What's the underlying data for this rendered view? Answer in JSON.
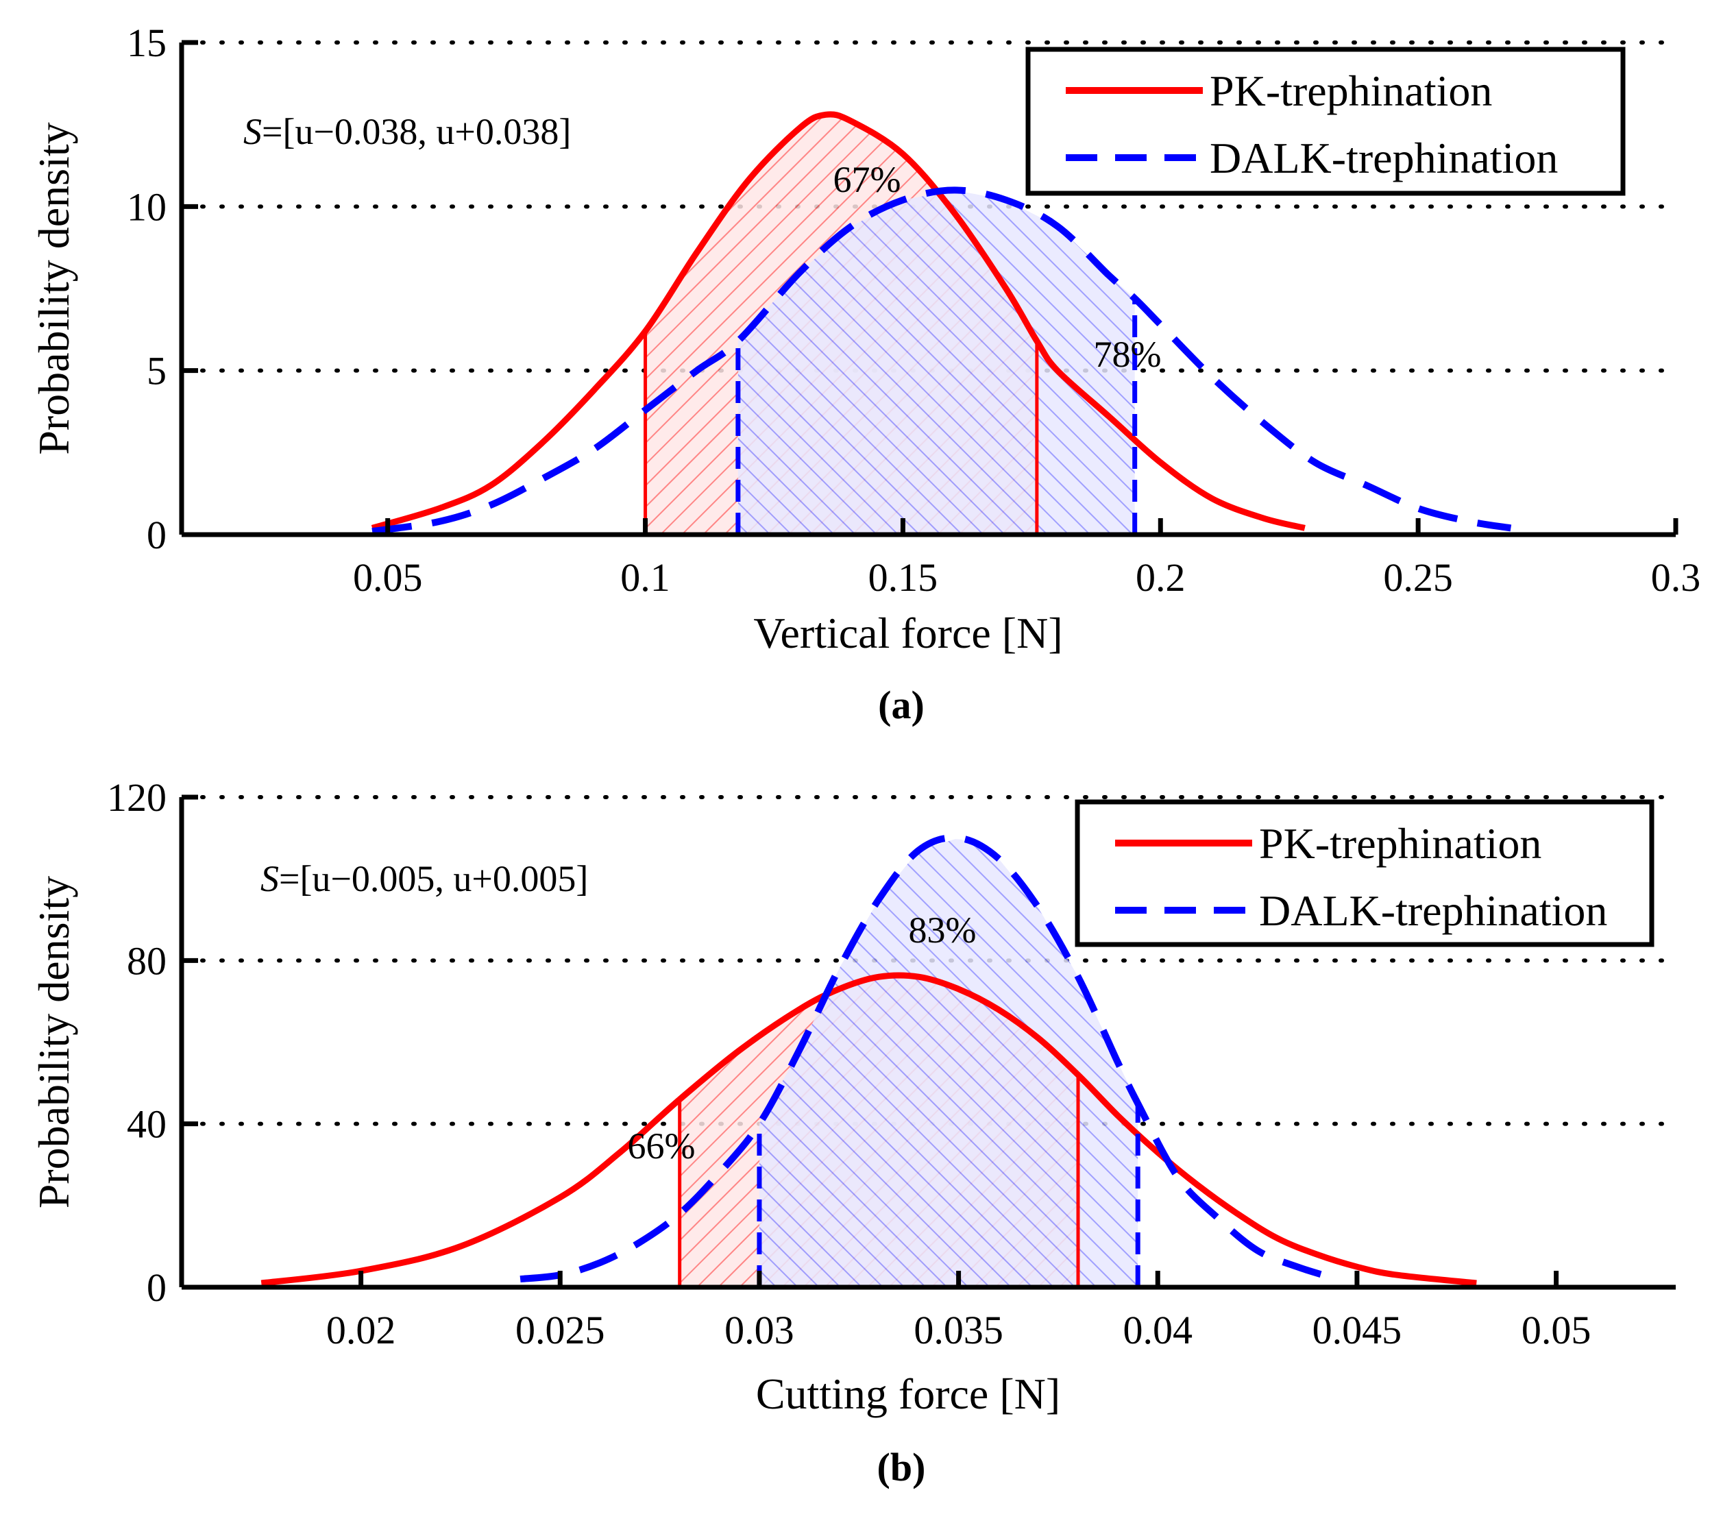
{
  "chart_data": [
    {
      "type": "line",
      "panel_label": "(a)",
      "xlabel": "Vertical force [N]",
      "ylabel": "Probability density",
      "xlim": [
        0.01,
        0.3
      ],
      "ylim": [
        0,
        15
      ],
      "xticks": [
        0.05,
        0.1,
        0.15,
        0.2,
        0.25,
        0.3
      ],
      "xtick_labels": [
        "0.05",
        "0.1",
        "0.15",
        "0.2",
        "0.25",
        "0.3"
      ],
      "yticks": [
        0,
        5,
        10,
        15
      ],
      "ytick_labels": [
        "0",
        "5",
        "10",
        "15"
      ],
      "grid": "horizontal dotted",
      "legend_position": "top-right",
      "annotation": {
        "var": "S",
        "text": "=[u−0.038, u+0.038]"
      },
      "series": [
        {
          "name": "PK-trephination",
          "color": "#ff0000",
          "style": "solid",
          "x": [
            0.047,
            0.06,
            0.07,
            0.08,
            0.09,
            0.1,
            0.11,
            0.12,
            0.13,
            0.135,
            0.14,
            0.15,
            0.16,
            0.17,
            0.176,
            0.18,
            0.19,
            0.2,
            0.21,
            0.22,
            0.228
          ],
          "y": [
            0.2,
            0.8,
            1.5,
            2.8,
            4.4,
            6.2,
            8.6,
            10.8,
            12.4,
            12.8,
            12.6,
            11.6,
            9.8,
            7.5,
            5.9,
            5.0,
            3.6,
            2.2,
            1.1,
            0.5,
            0.2
          ],
          "region": [
            0.1,
            0.176
          ],
          "region_label": "67%"
        },
        {
          "name": "DALK-trephination",
          "color": "#0000ff",
          "style": "dashed",
          "x": [
            0.047,
            0.06,
            0.07,
            0.08,
            0.09,
            0.1,
            0.11,
            0.118,
            0.13,
            0.14,
            0.15,
            0.16,
            0.17,
            0.18,
            0.19,
            0.195,
            0.2,
            0.21,
            0.22,
            0.23,
            0.24,
            0.25,
            0.26,
            0.268
          ],
          "y": [
            0.1,
            0.4,
            0.9,
            1.7,
            2.6,
            3.8,
            5.0,
            5.9,
            8.0,
            9.4,
            10.2,
            10.5,
            10.2,
            9.4,
            7.9,
            7.2,
            6.4,
            4.8,
            3.4,
            2.2,
            1.5,
            0.8,
            0.4,
            0.2
          ],
          "region": [
            0.118,
            0.195
          ],
          "region_label": "78%"
        }
      ]
    },
    {
      "type": "line",
      "panel_label": "(b)",
      "xlabel": "Cutting force [N]",
      "ylabel": "Probability density",
      "xlim": [
        0.0155,
        0.053
      ],
      "ylim": [
        0,
        120
      ],
      "xticks": [
        0.02,
        0.025,
        0.03,
        0.035,
        0.04,
        0.045,
        0.05
      ],
      "xtick_labels": [
        "0.02",
        "0.025",
        "0.03",
        "0.035",
        "0.04",
        "0.045",
        "0.05"
      ],
      "yticks": [
        0,
        40,
        80,
        120
      ],
      "ytick_labels": [
        "0",
        "40",
        "80",
        "120"
      ],
      "grid": "horizontal dotted",
      "legend_position": "top-right",
      "annotation": {
        "var": "S",
        "text": "=[u−0.005, u+0.005]"
      },
      "series": [
        {
          "name": "PK-trephination",
          "color": "#ff0000",
          "style": "solid",
          "x": [
            0.0175,
            0.02,
            0.0225,
            0.025,
            0.0265,
            0.028,
            0.0295,
            0.031,
            0.032,
            0.033,
            0.034,
            0.035,
            0.036,
            0.037,
            0.038,
            0.039,
            0.04,
            0.041,
            0.042,
            0.043,
            0.044,
            0.045,
            0.046,
            0.048
          ],
          "y": [
            1,
            4,
            10,
            22,
            33,
            46,
            58,
            68,
            73,
            76,
            76,
            73,
            68,
            61,
            52,
            42,
            33,
            25,
            18,
            12,
            8,
            5,
            3,
            1
          ],
          "region": [
            0.028,
            0.038
          ],
          "region_label": "66%"
        },
        {
          "name": "DALK-trephination",
          "color": "#0000ff",
          "style": "dashed",
          "x": [
            0.024,
            0.025,
            0.026,
            0.027,
            0.028,
            0.029,
            0.03,
            0.031,
            0.032,
            0.033,
            0.034,
            0.035,
            0.036,
            0.037,
            0.038,
            0.039,
            0.0395,
            0.0405,
            0.0415,
            0.0425,
            0.0435,
            0.0445
          ],
          "y": [
            2,
            3,
            6,
            11,
            18,
            28,
            40,
            58,
            78,
            95,
            107,
            110,
            105,
            93,
            76,
            55,
            45,
            27,
            17,
            9,
            5,
            2
          ],
          "region": [
            0.03,
            0.0395
          ],
          "region_label": "83%"
        }
      ]
    }
  ]
}
